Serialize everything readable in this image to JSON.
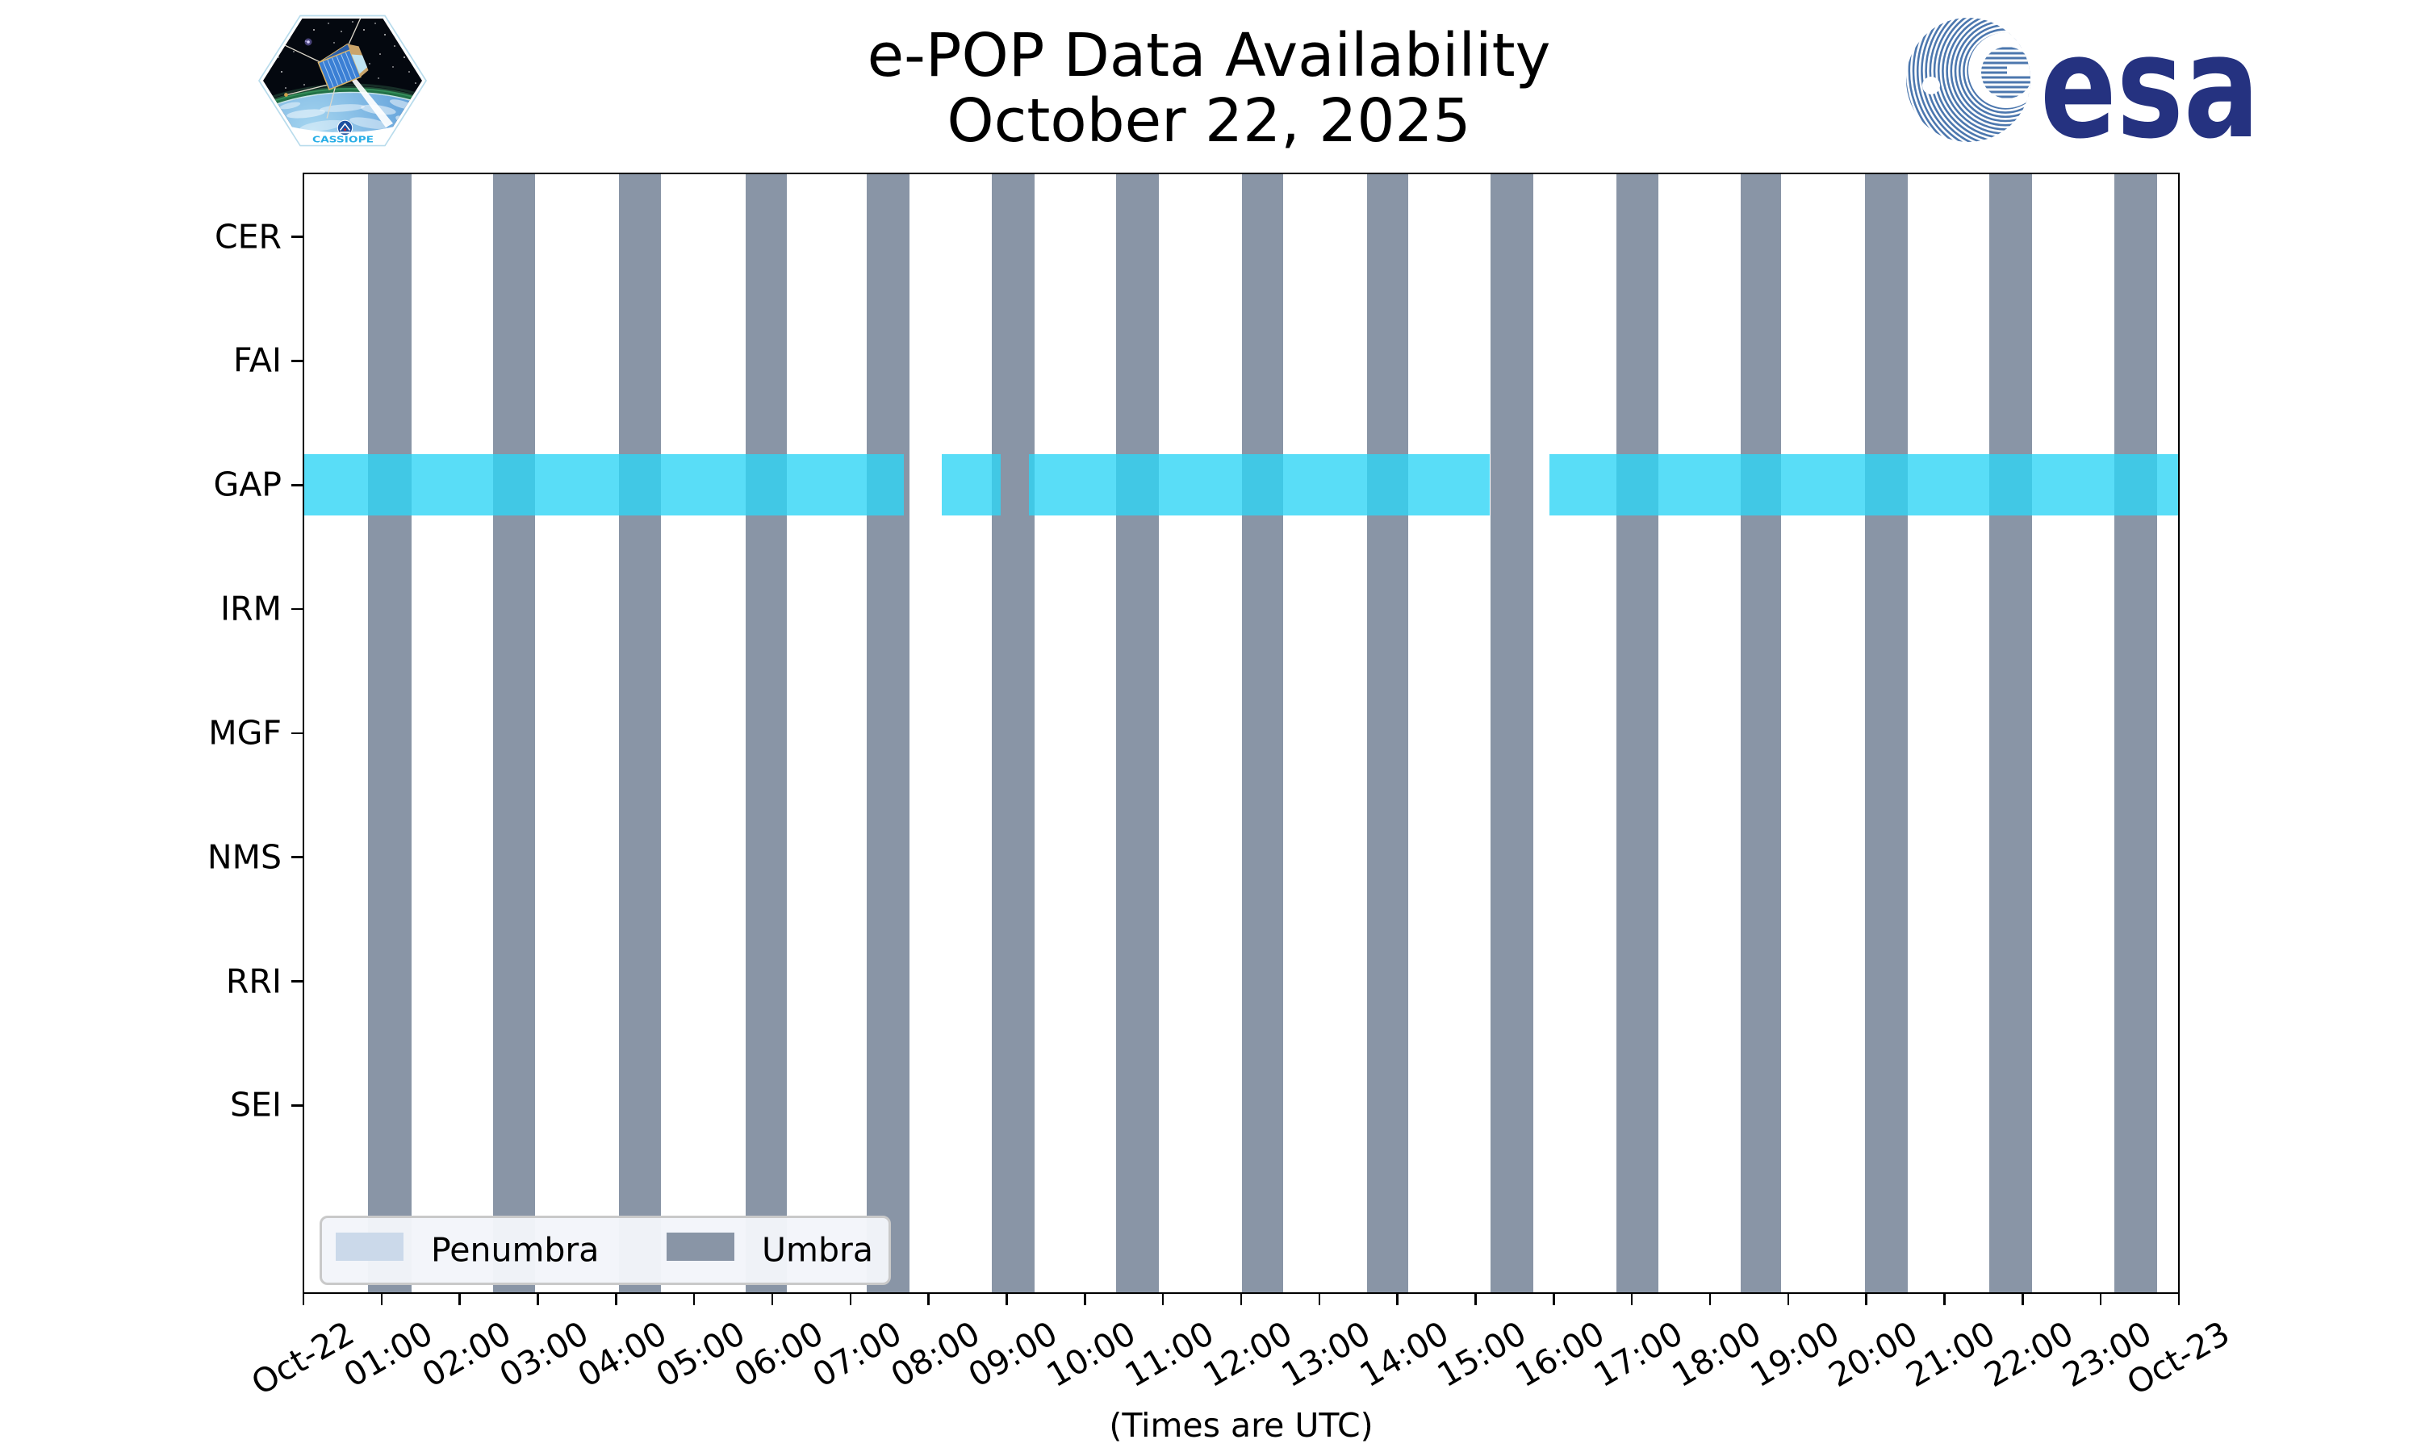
{
  "header": {
    "title": "e-POP Data Availability",
    "date": "October 22, 2025"
  },
  "logos": {
    "cassiope_patch_label": "CASSIOPE",
    "esa_wordmark": "esa"
  },
  "chart_data": {
    "type": "timeline",
    "title": "e-POP Data Availability",
    "subtitle": "October 22, 2025",
    "xlabel": "(Times are UTC)",
    "x_range_hours": [
      0,
      24
    ],
    "x_tick_hours": [
      0,
      1,
      2,
      3,
      4,
      5,
      6,
      7,
      8,
      9,
      10,
      11,
      12,
      13,
      14,
      15,
      16,
      17,
      18,
      19,
      20,
      21,
      22,
      23,
      24
    ],
    "x_tick_labels": [
      "Oct-22",
      "01:00",
      "02:00",
      "03:00",
      "04:00",
      "05:00",
      "06:00",
      "07:00",
      "08:00",
      "09:00",
      "10:00",
      "11:00",
      "12:00",
      "13:00",
      "14:00",
      "15:00",
      "16:00",
      "17:00",
      "18:00",
      "19:00",
      "20:00",
      "21:00",
      "22:00",
      "23:00",
      "Oct-23"
    ],
    "instruments": [
      "CER",
      "FAI",
      "GAP",
      "IRM",
      "MGF",
      "NMS",
      "RRI",
      "SEI"
    ],
    "availability_by_instrument": {
      "CER": [],
      "FAI": [],
      "GAP": [
        [
          0.0,
          7.68
        ],
        [
          8.17,
          8.92
        ],
        [
          9.28,
          15.18
        ],
        [
          15.95,
          24.0
        ]
      ],
      "IRM": [],
      "MGF": [],
      "NMS": [],
      "RRI": [],
      "SEI": []
    },
    "umbra_intervals_hours": [
      [
        0.83,
        1.38
      ],
      [
        2.43,
        2.96
      ],
      [
        4.04,
        4.58
      ],
      [
        5.66,
        6.19
      ],
      [
        7.21,
        7.76
      ],
      [
        8.81,
        9.36
      ],
      [
        10.4,
        10.95
      ],
      [
        12.01,
        12.54
      ],
      [
        13.61,
        14.14
      ],
      [
        15.19,
        15.74
      ],
      [
        16.8,
        17.34
      ],
      [
        18.39,
        18.91
      ],
      [
        19.98,
        20.53
      ],
      [
        21.57,
        22.12
      ],
      [
        23.17,
        23.72
      ]
    ],
    "legend": {
      "penumbra_label": "Penumbra",
      "umbra_label": "Umbra",
      "position": "lower left"
    },
    "colors": {
      "availability": "rgba(47,212,245,0.8)",
      "umbra": "#8995a6",
      "penumbra": "#cbd9ea"
    },
    "grid": false
  }
}
